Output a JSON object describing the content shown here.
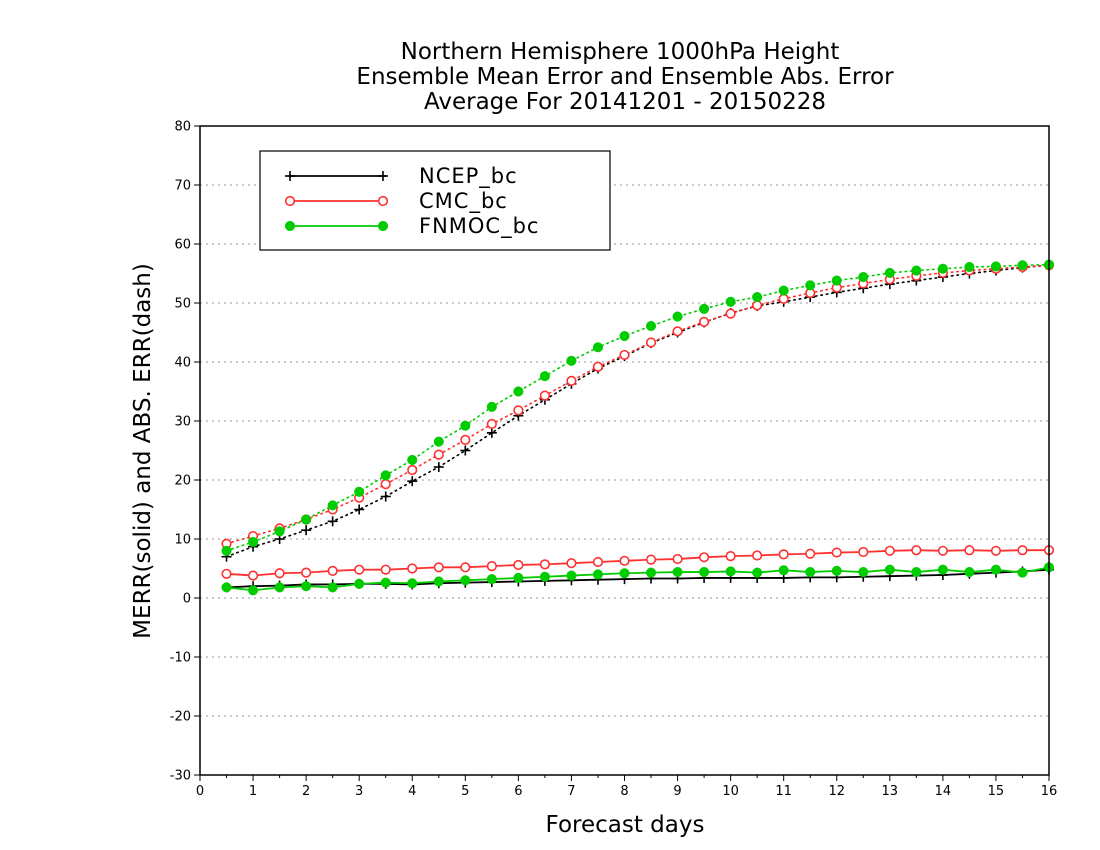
{
  "chart_data": {
    "type": "line",
    "title": [
      "Northern Hemisphere 1000hPa Height",
      "Ensemble Mean Error and Ensemble Abs. Error",
      "Average For 20141201 - 20150228"
    ],
    "xlabel": "Forecast days",
    "ylabel": "MERR(solid) and ABS. ERR(dash)",
    "xlim": [
      0,
      16
    ],
    "ylim": [
      -30,
      80
    ],
    "xticks": [
      0,
      1,
      2,
      3,
      4,
      5,
      6,
      7,
      8,
      9,
      10,
      11,
      12,
      13,
      14,
      15,
      16
    ],
    "yticks": [
      -30,
      -20,
      -10,
      0,
      10,
      20,
      30,
      40,
      50,
      60,
      70,
      80
    ],
    "grid": "horizontal dotted",
    "legend_position": "top-left",
    "x": [
      0.5,
      1,
      1.5,
      2,
      2.5,
      3,
      3.5,
      4,
      4.5,
      5,
      5.5,
      6,
      6.5,
      7,
      7.5,
      8,
      8.5,
      9,
      9.5,
      10,
      10.5,
      11,
      11.5,
      12,
      12.5,
      13,
      13.5,
      14,
      14.5,
      15,
      15.5,
      16
    ],
    "series": [
      {
        "name": "NCEP_bc",
        "color": "#000000",
        "marker": "plus",
        "merr": [
          1.8,
          2.0,
          2.1,
          2.3,
          2.3,
          2.4,
          2.4,
          2.3,
          2.5,
          2.6,
          2.7,
          2.8,
          2.9,
          3.0,
          3.1,
          3.2,
          3.3,
          3.3,
          3.4,
          3.4,
          3.4,
          3.4,
          3.5,
          3.5,
          3.6,
          3.7,
          3.8,
          3.9,
          4.1,
          4.3,
          4.5,
          4.8
        ],
        "abs_err": [
          7.0,
          8.7,
          10.0,
          11.5,
          13.0,
          15.0,
          17.2,
          19.8,
          22.2,
          25.0,
          28.0,
          30.9,
          33.6,
          36.3,
          38.9,
          41.0,
          43.2,
          45.0,
          46.7,
          48.3,
          49.5,
          50.2,
          51.0,
          51.8,
          52.5,
          53.2,
          53.8,
          54.4,
          55.0,
          55.5,
          56.0,
          56.4
        ]
      },
      {
        "name": "CMC_bc",
        "color": "#ff3030",
        "marker": "open-circle",
        "merr": [
          4.1,
          3.8,
          4.2,
          4.3,
          4.6,
          4.8,
          4.8,
          5.0,
          5.2,
          5.2,
          5.4,
          5.6,
          5.7,
          5.9,
          6.1,
          6.3,
          6.5,
          6.6,
          6.9,
          7.1,
          7.2,
          7.4,
          7.5,
          7.7,
          7.8,
          8.0,
          8.1,
          8.0,
          8.1,
          8.0,
          8.1,
          8.1
        ],
        "abs_err": [
          9.2,
          10.5,
          11.8,
          13.3,
          15.0,
          17.0,
          19.3,
          21.7,
          24.3,
          26.8,
          29.5,
          31.8,
          34.3,
          36.8,
          39.2,
          41.2,
          43.3,
          45.2,
          46.8,
          48.2,
          49.6,
          50.7,
          51.7,
          52.6,
          53.3,
          54.0,
          54.6,
          55.1,
          55.5,
          55.8,
          56.1,
          56.4
        ]
      },
      {
        "name": "FNMOC_bc",
        "color": "#00cc00",
        "marker": "filled-circle",
        "merr": [
          1.8,
          1.3,
          1.8,
          2.0,
          1.8,
          2.4,
          2.6,
          2.5,
          2.8,
          3.0,
          3.2,
          3.4,
          3.6,
          3.8,
          4.0,
          4.2,
          4.3,
          4.4,
          4.4,
          4.5,
          4.3,
          4.7,
          4.4,
          4.6,
          4.4,
          4.8,
          4.4,
          4.8,
          4.4,
          4.8,
          4.3,
          5.2
        ],
        "abs_err": [
          8.0,
          9.5,
          11.3,
          13.3,
          15.7,
          18.0,
          20.8,
          23.4,
          26.5,
          29.2,
          32.4,
          35.0,
          37.6,
          40.2,
          42.5,
          44.4,
          46.1,
          47.7,
          49.0,
          50.2,
          51.0,
          52.1,
          53.0,
          53.8,
          54.4,
          55.1,
          55.5,
          55.8,
          56.1,
          56.2,
          56.4,
          56.5
        ]
      }
    ]
  }
}
